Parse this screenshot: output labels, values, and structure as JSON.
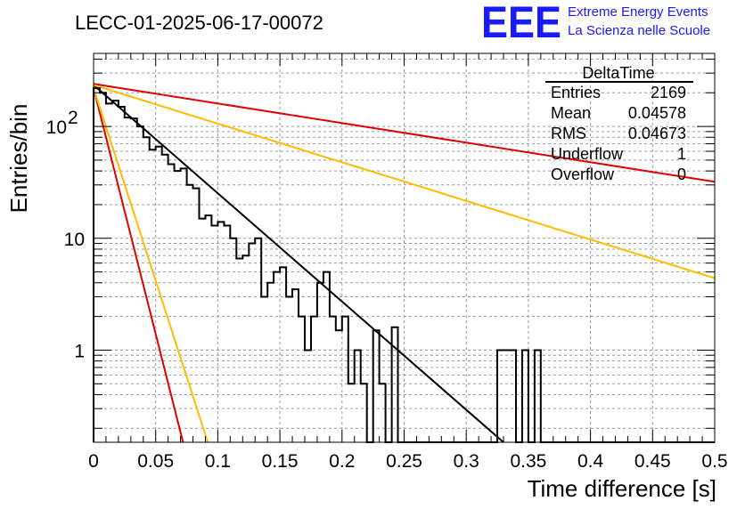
{
  "title": "LECC-01-2025-06-17-00072",
  "logo": {
    "mark": "EEE",
    "line1": "Extreme Energy Events",
    "line2": "La Scienza nelle Scuole",
    "color": "#1a1aff"
  },
  "stats": {
    "name": "DeltaTime",
    "rows": [
      {
        "label": "Entries",
        "value": "2169"
      },
      {
        "label": "Mean",
        "value": "0.04578"
      },
      {
        "label": "RMS",
        "value": "0.04673"
      },
      {
        "label": "Underflow",
        "value": "1"
      },
      {
        "label": "Overflow",
        "value": "0"
      }
    ]
  },
  "chart_data": {
    "type": "histogram",
    "xlabel": "Time difference [s]",
    "ylabel": "Entries/bin",
    "xlim": [
      0,
      0.5
    ],
    "ylim": [
      0.15,
      450
    ],
    "log_y": true,
    "grid": true,
    "x_ticks": [
      {
        "v": 0,
        "label": "0"
      },
      {
        "v": 0.05,
        "label": "0.05"
      },
      {
        "v": 0.1,
        "label": "0.1"
      },
      {
        "v": 0.15,
        "label": "0.15"
      },
      {
        "v": 0.2,
        "label": "0.2"
      },
      {
        "v": 0.25,
        "label": "0.25"
      },
      {
        "v": 0.3,
        "label": "0.3"
      },
      {
        "v": 0.35,
        "label": "0.35"
      },
      {
        "v": 0.4,
        "label": "0.4"
      },
      {
        "v": 0.45,
        "label": "0.45"
      },
      {
        "v": 0.5,
        "label": "0.5"
      }
    ],
    "y_ticks": [
      {
        "v": 1,
        "label": "1"
      },
      {
        "v": 10,
        "label": "10"
      },
      {
        "v": 100,
        "label": "10",
        "sup": "2"
      }
    ],
    "bin_width": 0.005,
    "bin_values": [
      220,
      200,
      160,
      170,
      150,
      120,
      118,
      100,
      80,
      62,
      66,
      56,
      46,
      40,
      42,
      30,
      28,
      15,
      16,
      13,
      14,
      13,
      10,
      6.6,
      7,
      9,
      10,
      3,
      4,
      5,
      5.5,
      3,
      3.5,
      2,
      1,
      2,
      4,
      5,
      2,
      1.5,
      2,
      0.5,
      1,
      0.5,
      0,
      1.5,
      0.5,
      0,
      1.6,
      0,
      0,
      0,
      0,
      0,
      0,
      0,
      0,
      0,
      0,
      0,
      0,
      0,
      0,
      0,
      0,
      1,
      1,
      1,
      0,
      1,
      0,
      1,
      0,
      0,
      0,
      0,
      0,
      0,
      0,
      0,
      0,
      0,
      0,
      0,
      0,
      0,
      0,
      0,
      0,
      0,
      0,
      0,
      0,
      0,
      0,
      0,
      0,
      0,
      0,
      0
    ],
    "series": [
      {
        "color": "#000000",
        "points": [
          [
            0,
            235
          ],
          [
            0.33,
            0.15
          ]
        ]
      },
      {
        "color": "#dd0000",
        "points": [
          [
            0,
            240
          ],
          [
            0.5,
            32
          ]
        ]
      },
      {
        "color": "#ffbb00",
        "points": [
          [
            0,
            235
          ],
          [
            0.5,
            4.4
          ]
        ]
      },
      {
        "color": "#dd0000",
        "points": [
          [
            0,
            220
          ],
          [
            0.072,
            0.15
          ]
        ]
      },
      {
        "color": "#ffbb00",
        "points": [
          [
            0,
            220
          ],
          [
            0.092,
            0.15
          ]
        ]
      }
    ]
  }
}
